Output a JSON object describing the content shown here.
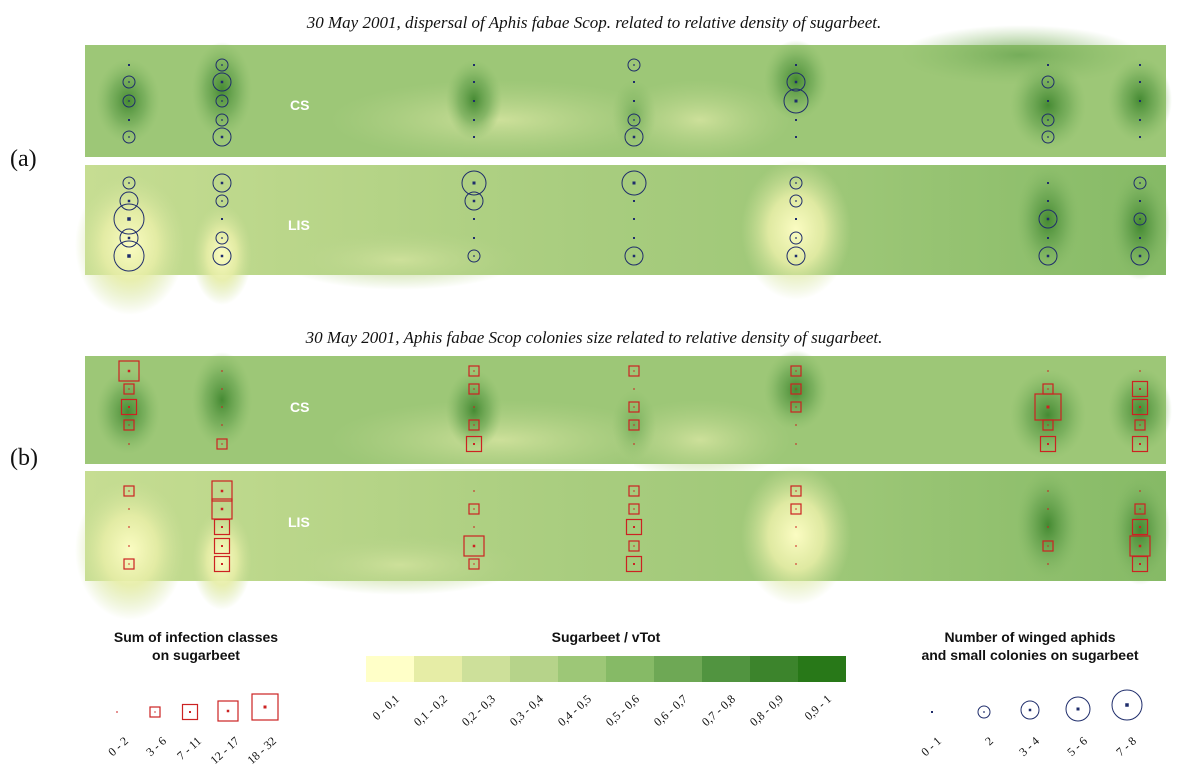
{
  "chart_data": [
    {
      "type": "heatmap",
      "panel_label": "(a)",
      "title": "30 May 2001,  dispersal of Aphis fabae Scop. related to relative density of sugarbeet.",
      "overlay": "winged_aphids",
      "fields": [
        {
          "label": "CS",
          "columns": [
            {
              "classes": [
                0,
                1,
                1,
                0,
                1
              ]
            },
            {
              "classes": [
                1,
                2,
                1,
                1,
                2
              ]
            },
            {
              "classes": [
                0,
                0,
                0,
                0,
                0
              ]
            },
            {
              "classes": [
                1,
                0,
                0,
                1,
                2
              ]
            },
            {
              "classes": [
                0,
                2,
                3,
                0,
                0
              ]
            },
            {
              "classes": [
                0,
                1,
                0,
                1,
                1
              ]
            },
            {
              "classes": [
                0,
                0,
                0,
                0,
                0
              ]
            }
          ]
        },
        {
          "label": "LIS",
          "columns": [
            {
              "classes": [
                1,
                2,
                4,
                2,
                4
              ]
            },
            {
              "classes": [
                2,
                1,
                0,
                1,
                2
              ]
            },
            {
              "classes": [
                3,
                2,
                0,
                0,
                1
              ]
            },
            {
              "classes": [
                3,
                0,
                0,
                0,
                2
              ]
            },
            {
              "classes": [
                1,
                1,
                0,
                1,
                2
              ]
            },
            {
              "classes": [
                0,
                0,
                2,
                0,
                2
              ]
            },
            {
              "classes": [
                1,
                0,
                1,
                0,
                2
              ]
            }
          ]
        }
      ]
    },
    {
      "type": "heatmap",
      "panel_label": "(b)",
      "title": "30 May 2001,   Aphis fabae Scop colonies size related to relative density of sugarbeet.",
      "overlay": "infection_classes",
      "fields": [
        {
          "label": "CS",
          "columns": [
            {
              "classes": [
                3,
                1,
                2,
                1,
                0
              ]
            },
            {
              "classes": [
                0,
                0,
                0,
                0,
                1
              ]
            },
            {
              "classes": [
                1,
                1,
                0,
                1,
                2
              ]
            },
            {
              "classes": [
                1,
                0,
                1,
                1,
                0
              ]
            },
            {
              "classes": [
                1,
                1,
                1,
                0,
                0
              ]
            },
            {
              "classes": [
                0,
                1,
                4,
                1,
                2
              ]
            },
            {
              "classes": [
                0,
                2,
                2,
                1,
                2
              ]
            }
          ]
        },
        {
          "label": "LIS",
          "columns": [
            {
              "classes": [
                1,
                0,
                0,
                0,
                1
              ]
            },
            {
              "classes": [
                3,
                3,
                2,
                2,
                2
              ]
            },
            {
              "classes": [
                0,
                1,
                0,
                3,
                1
              ]
            },
            {
              "classes": [
                1,
                1,
                2,
                1,
                2
              ]
            },
            {
              "classes": [
                1,
                1,
                0,
                0,
                0
              ]
            },
            {
              "classes": [
                0,
                0,
                0,
                1,
                0
              ]
            },
            {
              "classes": [
                0,
                1,
                2,
                3,
                2
              ]
            }
          ]
        }
      ]
    }
  ],
  "legends": {
    "infection": {
      "title_line1": "Sum of infection classes",
      "title_line2": "on sugarbeet",
      "classes": [
        "0 - 2",
        "3 - 6",
        "7 - 11",
        "12 - 17",
        "18 - 32"
      ],
      "color": "#cc2222"
    },
    "density": {
      "title": "Sugarbeet / vTot",
      "classes": [
        "0 - 0,1",
        "0,1 - 0,2",
        "0,2 - 0,3",
        "0,3 - 0,4",
        "0,4 - 0,5",
        "0,5 - 0,6",
        "0,6 - 0,7",
        "0,7 - 0,8",
        "0,8 - 0,9",
        "0,9 - 1"
      ],
      "colors": [
        "#ffffc8",
        "#e6eda6",
        "#cde09a",
        "#b6d38a",
        "#9dc777",
        "#86ba66",
        "#6ea855",
        "#519440",
        "#3c842c",
        "#287818"
      ]
    },
    "winged": {
      "title_line1": "Number of winged aphids",
      "title_line2": "and small colonies on sugarbeet",
      "classes": [
        "0 - 1",
        "2",
        "3 - 4",
        "5 - 6",
        "7 - 8"
      ],
      "color": "#1f2d6b"
    }
  }
}
